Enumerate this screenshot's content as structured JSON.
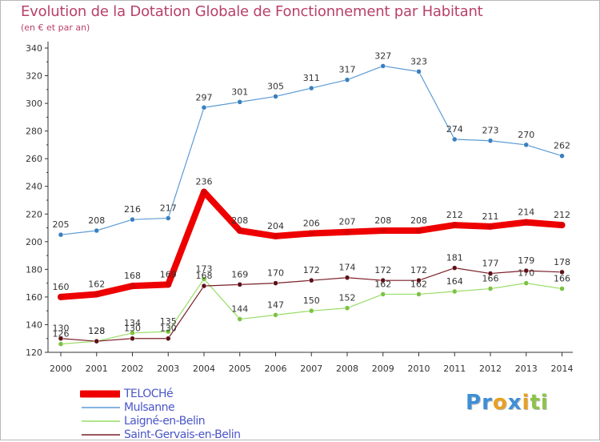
{
  "chart_data": {
    "type": "line",
    "title": "Evolution de la Dotation Globale de Fonctionnement par Habitant",
    "subtitle": "(en € et par an)",
    "x": [
      "2000",
      "2001",
      "2002",
      "2003",
      "2004",
      "2005",
      "2006",
      "2007",
      "2008",
      "2009",
      "2010",
      "2011",
      "2012",
      "2013",
      "2014"
    ],
    "ylim": [
      120,
      340
    ],
    "yticks": [
      120,
      140,
      160,
      180,
      200,
      220,
      240,
      260,
      280,
      300,
      320,
      340
    ],
    "ytick_labels": [
      "120",
      "140",
      "160",
      "180",
      "200",
      "220",
      "240",
      "260",
      "280",
      "300",
      "320",
      "340"
    ],
    "grid": false,
    "legend_position": "bottom-left",
    "series": [
      {
        "name": "Mulsanne",
        "color": "#5b9bd5",
        "marker": "#3a7fbf",
        "width": 1.2,
        "values": [
          205,
          208,
          216,
          217,
          297,
          301,
          305,
          311,
          317,
          327,
          323,
          274,
          273,
          270,
          262
        ],
        "labels": [
          "205",
          "208",
          "216",
          "217",
          "297",
          "301",
          "305",
          "311",
          "317",
          "327",
          "323",
          "274",
          "273",
          "270",
          "262"
        ]
      },
      {
        "name": "Laigné-en-Belin",
        "color": "#99dd66",
        "marker": "#7cc242",
        "width": 1.2,
        "values": [
          126,
          128,
          134,
          135,
          173,
          144,
          147,
          150,
          152,
          162,
          162,
          164,
          166,
          170,
          166
        ],
        "labels": [
          "126",
          "128",
          "134",
          "135",
          "173",
          "144",
          "147",
          "150",
          "152",
          "162",
          "162",
          "164",
          "166",
          "170",
          "166"
        ]
      },
      {
        "name": "Saint-Gervais-en-Belin",
        "color": "#7a1f28",
        "marker": "#5e1118",
        "width": 1.2,
        "values": [
          130,
          128,
          130,
          130,
          168,
          169,
          170,
          172,
          174,
          172,
          172,
          181,
          177,
          179,
          178
        ],
        "labels": [
          "130",
          "128",
          "130",
          "130",
          "168",
          "169",
          "170",
          "172",
          "174",
          "172",
          "172",
          "181",
          "177",
          "179",
          "178"
        ]
      },
      {
        "name": "TELOCHé",
        "color": "#ee0000",
        "marker": "#dd0000",
        "width": 8,
        "values": [
          160,
          162,
          168,
          169,
          236,
          208,
          204,
          206,
          207,
          208,
          208,
          212,
          211,
          214,
          212
        ],
        "labels": [
          "160",
          "162",
          "168",
          "169",
          "236",
          "208",
          "204",
          "206",
          "207",
          "208",
          "208",
          "212",
          "211",
          "214",
          "212"
        ]
      }
    ]
  },
  "legend": [
    {
      "label": "TELOCHé",
      "color": "#ee0000",
      "thick": true
    },
    {
      "label": "Mulsanne",
      "color": "#5b9bd5",
      "thick": false
    },
    {
      "label": "Laigné-en-Belin",
      "color": "#99dd66",
      "thick": false
    },
    {
      "label": "Saint-Gervais-en-Belin",
      "color": "#7a1f28",
      "thick": false
    }
  ],
  "logo": {
    "letters": [
      "P",
      "r",
      "o",
      "x",
      "i",
      "t",
      "i"
    ],
    "colors": [
      "#3d8fd6",
      "#3d8fd6",
      "#e9a020",
      "#3d8fd6",
      "#e9a020",
      "#8bc34a",
      "#8bc34a"
    ]
  }
}
